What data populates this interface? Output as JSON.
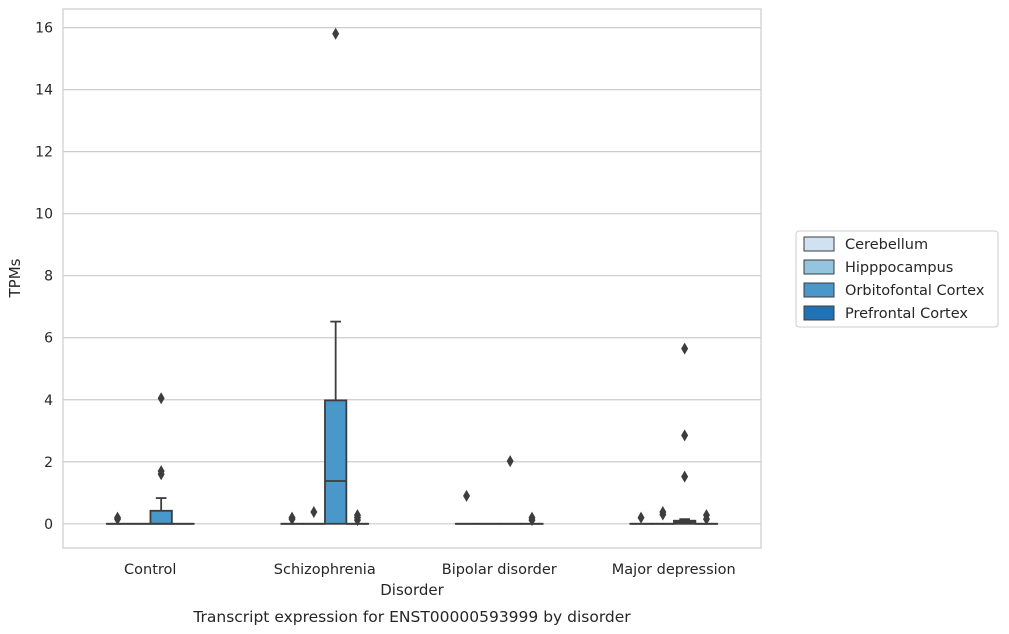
{
  "chart_data": {
    "type": "box",
    "caption": "Transcript expression for ENST00000593999 by disorder",
    "xlabel": "Disorder",
    "ylabel": "TPMs",
    "ylim": [
      -0.78,
      16.6
    ],
    "yticks": [
      0,
      2,
      4,
      6,
      8,
      10,
      12,
      14,
      16
    ],
    "grid": true,
    "legend_position": "right-center",
    "categories": [
      "Control",
      "Schizophrenia",
      "Bipolar disorder",
      "Major depression"
    ],
    "series": [
      {
        "name": "Cerebellum",
        "color": "#d0e1f2",
        "boxes": [
          {
            "q1": 0,
            "median": 0,
            "q3": 0,
            "whisker_low": 0,
            "whisker_high": 0,
            "outliers": [
              0.15,
              0.2
            ]
          },
          {
            "q1": 0,
            "median": 0,
            "q3": 0,
            "whisker_low": 0,
            "whisker_high": 0,
            "outliers": [
              0.15,
              0.2
            ]
          },
          {
            "q1": 0,
            "median": 0,
            "q3": 0,
            "whisker_low": 0,
            "whisker_high": 0,
            "outliers": [
              0.9
            ]
          },
          {
            "q1": 0,
            "median": 0,
            "q3": 0,
            "whisker_low": 0,
            "whisker_high": 0,
            "outliers": [
              0.2
            ]
          }
        ]
      },
      {
        "name": "Hipppocampus",
        "color": "#94c4df",
        "boxes": [
          {
            "q1": 0,
            "median": 0,
            "q3": 0,
            "whisker_low": 0,
            "whisker_high": 0,
            "outliers": []
          },
          {
            "q1": 0,
            "median": 0,
            "q3": 0,
            "whisker_low": 0,
            "whisker_high": 0,
            "outliers": [
              0.38
            ]
          },
          {
            "q1": 0,
            "median": 0,
            "q3": 0,
            "whisker_low": 0,
            "whisker_high": 0,
            "outliers": []
          },
          {
            "q1": 0,
            "median": 0,
            "q3": 0,
            "whisker_low": 0,
            "whisker_high": 0,
            "outliers": [
              0.3,
              0.38
            ]
          }
        ]
      },
      {
        "name": "Orbitofontal Cortex",
        "color": "#4a98c9",
        "boxes": [
          {
            "q1": 0,
            "median": 0,
            "q3": 0.42,
            "whisker_low": 0,
            "whisker_high": 0.83,
            "outliers": [
              1.6,
              1.7,
              4.05
            ]
          },
          {
            "q1": 0,
            "median": 1.38,
            "q3": 3.98,
            "whisker_low": 0,
            "whisker_high": 6.52,
            "outliers": [
              15.8
            ]
          },
          {
            "q1": 0,
            "median": 0,
            "q3": 0,
            "whisker_low": 0,
            "whisker_high": 0,
            "outliers": [
              2.02
            ]
          },
          {
            "q1": 0,
            "median": 0.05,
            "q3": 0.1,
            "whisker_low": 0,
            "whisker_high": 0.15,
            "outliers": [
              1.52,
              2.85,
              5.65
            ]
          }
        ]
      },
      {
        "name": "Prefrontal Cortex",
        "color": "#2171b5",
        "boxes": [
          {
            "q1": 0,
            "median": 0,
            "q3": 0,
            "whisker_low": 0,
            "whisker_high": 0,
            "outliers": []
          },
          {
            "q1": 0,
            "median": 0,
            "q3": 0,
            "whisker_low": 0,
            "whisker_high": 0,
            "outliers": [
              0.12,
              0.2,
              0.28
            ]
          },
          {
            "q1": 0,
            "median": 0,
            "q3": 0,
            "whisker_low": 0,
            "whisker_high": 0,
            "outliers": [
              0.12,
              0.2
            ]
          },
          {
            "q1": 0,
            "median": 0,
            "q3": 0,
            "whisker_low": 0,
            "whisker_high": 0,
            "outliers": [
              0.15,
              0.28
            ]
          }
        ]
      }
    ]
  }
}
